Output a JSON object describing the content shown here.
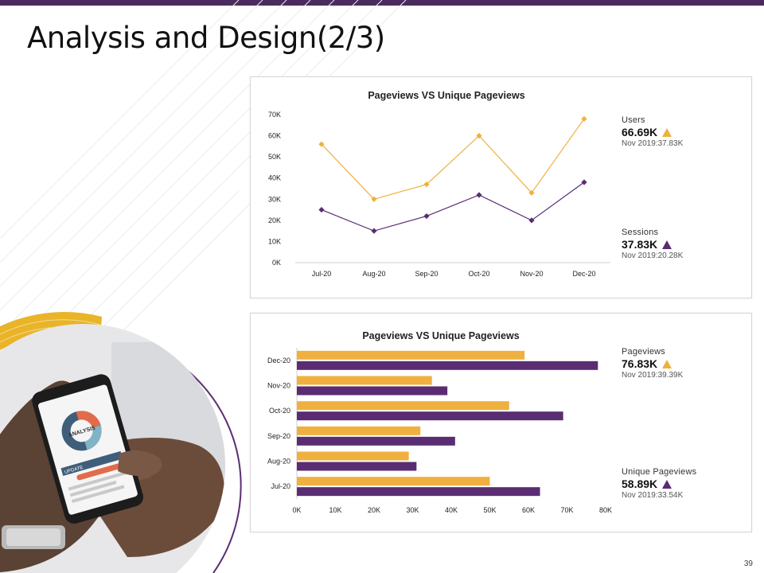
{
  "slide": {
    "title": "Analysis and Design(2/3)",
    "page_number": "39"
  },
  "colors": {
    "accent_gold": "#f0b03f",
    "accent_purple": "#5a2d73",
    "topbar": "#4b2a5e"
  },
  "photo": {
    "screen_label": "ANALYSIS",
    "update_label": "UPDATE"
  },
  "chart_data": [
    {
      "type": "line",
      "title": "Pageviews VS Unique Pageviews",
      "categories": [
        "Jul-20",
        "Aug-20",
        "Sep-20",
        "Oct-20",
        "Nov-20",
        "Dec-20"
      ],
      "series": [
        {
          "name": "Users",
          "color": "#f0b03f",
          "values": [
            56000,
            30000,
            37000,
            60000,
            33000,
            68000
          ]
        },
        {
          "name": "Sessions",
          "color": "#5a2d73",
          "values": [
            25000,
            15000,
            22000,
            32000,
            20000,
            38000
          ]
        }
      ],
      "ylim": [
        0,
        70000
      ],
      "yticks": [
        "0K",
        "10K",
        "20K",
        "30K",
        "40K",
        "50K",
        "60K",
        "70K"
      ],
      "grid": false,
      "legend": "none"
    },
    {
      "type": "bar",
      "orientation": "horizontal",
      "title": "Pageviews VS Unique Pageviews",
      "categories": [
        "Jul-20",
        "Aug-20",
        "Sep-20",
        "Oct-20",
        "Nov-20",
        "Dec-20"
      ],
      "series": [
        {
          "name": "Pageviews",
          "color": "#f0b03f",
          "values": [
            50000,
            29000,
            32000,
            55000,
            35000,
            59000
          ]
        },
        {
          "name": "Unique Pageviews",
          "color": "#5a2d73",
          "values": [
            63000,
            31000,
            41000,
            69000,
            39000,
            78000
          ]
        }
      ],
      "xlim": [
        0,
        80000
      ],
      "xticks": [
        "0K",
        "10K",
        "20K",
        "30K",
        "40K",
        "50K",
        "60K",
        "70K",
        "80K"
      ],
      "grid": false,
      "legend": "none"
    }
  ],
  "kpis": {
    "users": {
      "label": "Users",
      "value": "66.69K",
      "sub": "Nov 2019:37.83K",
      "trend": "up",
      "color": "#f0b03f"
    },
    "sessions": {
      "label": "Sessions",
      "value": "37.83K",
      "sub": "Nov 2019:20.28K",
      "trend": "up",
      "color": "#5a2d73"
    },
    "pageviews": {
      "label": "Pageviews",
      "value": "76.83K",
      "sub": "Nov 2019:39.39K",
      "trend": "up",
      "color": "#f0b03f"
    },
    "unique_pageviews": {
      "label": "Unique Pageviews",
      "value": "58.89K",
      "sub": "Nov 2019:33.54K",
      "trend": "up",
      "color": "#5a2d73"
    }
  }
}
